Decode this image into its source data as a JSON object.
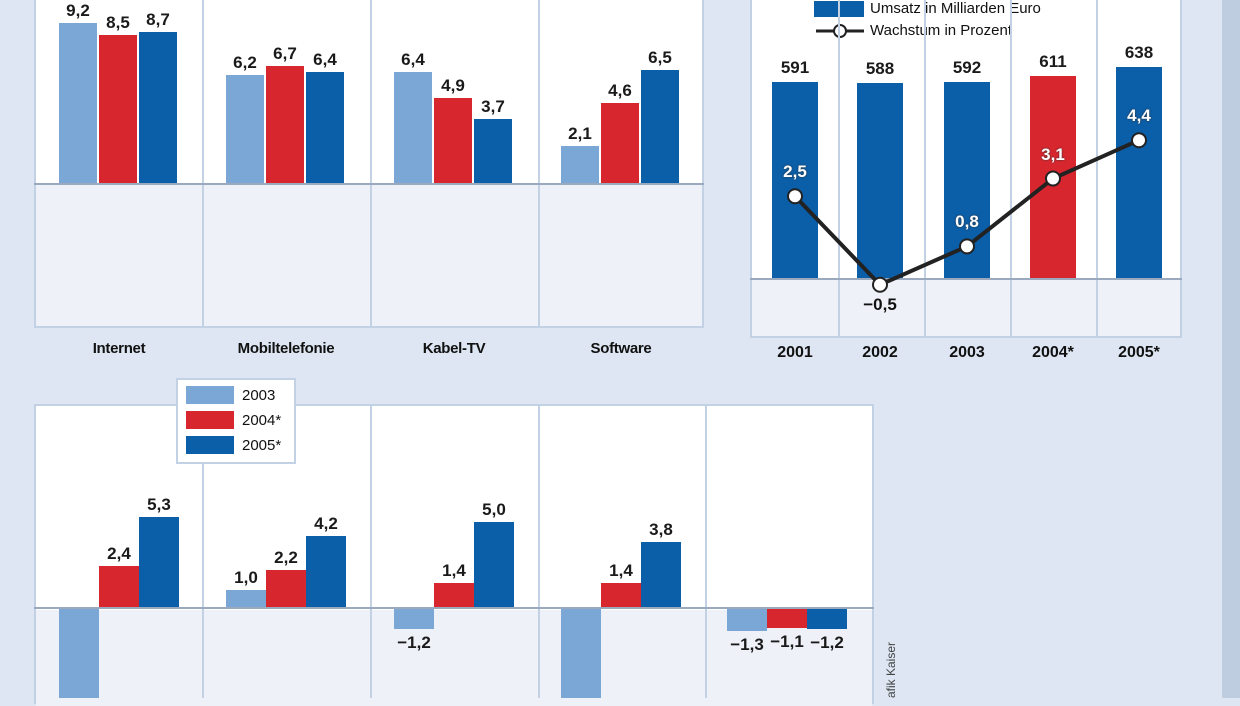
{
  "colors": {
    "c2003": "#7ba7d6",
    "c2004": "#d8262e",
    "c2005": "#0b5ea8",
    "line": "#222222"
  },
  "legend": {
    "items": [
      {
        "label": "2003",
        "color": "#7ba7d6"
      },
      {
        "label": "2004*",
        "color": "#d8262e"
      },
      {
        "label": "2005*",
        "color": "#0b5ea8"
      }
    ]
  },
  "right_legend": {
    "bar_label": "Umsatz  in Milliarden Euro",
    "line_label": "Wachstum in Prozent"
  },
  "credit": "afik Kaiser",
  "chart_data": [
    {
      "type": "bar",
      "categories": [
        "Internet",
        "Mobiltelefonie",
        "Kabel-TV",
        "Software"
      ],
      "series": [
        {
          "name": "2003",
          "values": [
            9.2,
            6.2,
            6.4,
            2.1
          ],
          "labels": [
            "9,2",
            "6,2",
            "6,4",
            "2,1"
          ]
        },
        {
          "name": "2004*",
          "values": [
            8.5,
            6.7,
            4.9,
            4.6
          ],
          "labels": [
            "8,5",
            "6,7",
            "4,9",
            "4,6"
          ]
        },
        {
          "name": "2005*",
          "values": [
            8.7,
            6.4,
            3.7,
            6.5
          ],
          "labels": [
            "8,7",
            "6,4",
            "3,7",
            "6,5"
          ]
        }
      ]
    },
    {
      "type": "bar",
      "categories": [
        "2001",
        "2002",
        "2003",
        "2004*",
        "2005*"
      ],
      "series": [
        {
          "name": "Umsatz  in Milliarden Euro",
          "values": [
            591,
            588,
            592,
            611,
            638
          ],
          "labels": [
            "591",
            "588",
            "592",
            "611",
            "638"
          ]
        },
        {
          "name": "Wachstum in Prozent",
          "type": "line",
          "values": [
            2.5,
            -0.5,
            0.8,
            3.1,
            4.4
          ],
          "labels": [
            "2,5",
            "−0,5",
            "0,8",
            "3,1",
            "4,4"
          ]
        }
      ]
    },
    {
      "type": "bar",
      "categories": [
        "",
        "",
        "",
        "",
        ""
      ],
      "series": [
        {
          "name": "2003",
          "values": [
            null,
            1.0,
            -1.2,
            null,
            -1.3
          ],
          "labels": [
            "",
            "1,0",
            "−1,2",
            "",
            "−1,3"
          ]
        },
        {
          "name": "2004*",
          "values": [
            2.4,
            2.2,
            1.4,
            1.4,
            -1.1
          ],
          "labels": [
            "2,4",
            "2,2",
            "1,4",
            "1,4",
            "−1,1"
          ]
        },
        {
          "name": "2005*",
          "values": [
            5.3,
            4.2,
            5.0,
            3.8,
            -1.2
          ],
          "labels": [
            "5,3",
            "4,2",
            "5,0",
            "3,8",
            "−1,2"
          ]
        }
      ]
    }
  ]
}
